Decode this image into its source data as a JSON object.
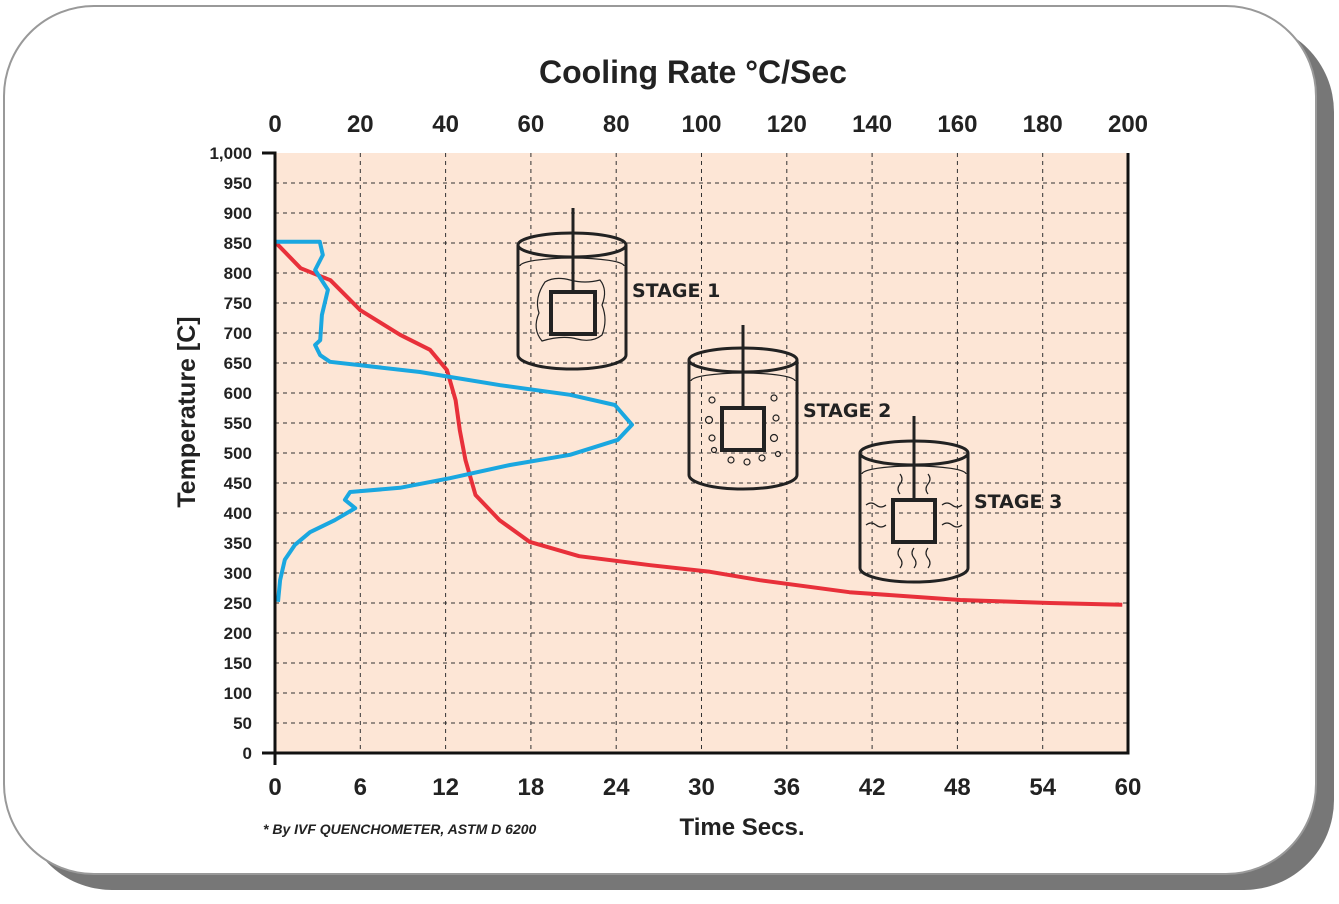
{
  "chart_data": {
    "type": "line",
    "title": "Cooling Rate  °C/Sec",
    "xlabel": "Time Secs.",
    "ylabel": "Temperature [C]",
    "xlim": [
      0,
      60
    ],
    "xticks": [
      0,
      6,
      12,
      18,
      24,
      30,
      36,
      42,
      48,
      54,
      60
    ],
    "x2lim": [
      0,
      200
    ],
    "x2ticks": [
      0,
      20,
      40,
      60,
      80,
      100,
      120,
      140,
      160,
      180,
      200
    ],
    "ylim": [
      0,
      1000
    ],
    "yticks": [
      0,
      50,
      100,
      150,
      200,
      250,
      300,
      350,
      400,
      450,
      500,
      550,
      600,
      650,
      700,
      750,
      800,
      850,
      900,
      950,
      {
        "value": 1000,
        "label": "1,000"
      }
    ],
    "grid": true,
    "series": [
      {
        "color": "#e8303a",
        "x": [
          0,
          1.8,
          3.9,
          6,
          8.8,
          10.9,
          12.1,
          12.7,
          13,
          13.4,
          14.1,
          15.8,
          17.9,
          21.4,
          26.4,
          30.6,
          34.1,
          40.4,
          48.2,
          54.5,
          59.6
        ],
        "values": [
          852,
          808,
          788,
          738,
          697,
          672,
          638,
          588,
          538,
          488,
          430,
          388,
          352,
          328,
          313,
          302,
          288,
          268,
          255,
          250,
          247
        ]
      },
      {
        "color": "#1aa7e0",
        "axis": "x2",
        "x": [
          0,
          10.5,
          11.2,
          9.4,
          12.4,
          11,
          10.6,
          9.4,
          10.6,
          12.9,
          34,
          52.8,
          69.2,
          79.7,
          83.7,
          80.4,
          69.2,
          55.1,
          41,
          29.3,
          17.6,
          16.4,
          18.8,
          14,
          8.2,
          4.7,
          2.3,
          1.2,
          0.7
        ],
        "values": [
          852,
          852,
          830,
          805,
          772,
          730,
          688,
          680,
          663,
          652,
          635,
          613,
          597,
          580,
          547,
          522,
          497,
          480,
          458,
          442,
          435,
          422,
          408,
          388,
          368,
          347,
          322,
          288,
          252
        ]
      }
    ],
    "annotations": [
      "STAGE 1",
      "STAGE 2",
      "STAGE 3",
      "* By IVF QUENCHOMETER, ASTM D 6200"
    ]
  }
}
